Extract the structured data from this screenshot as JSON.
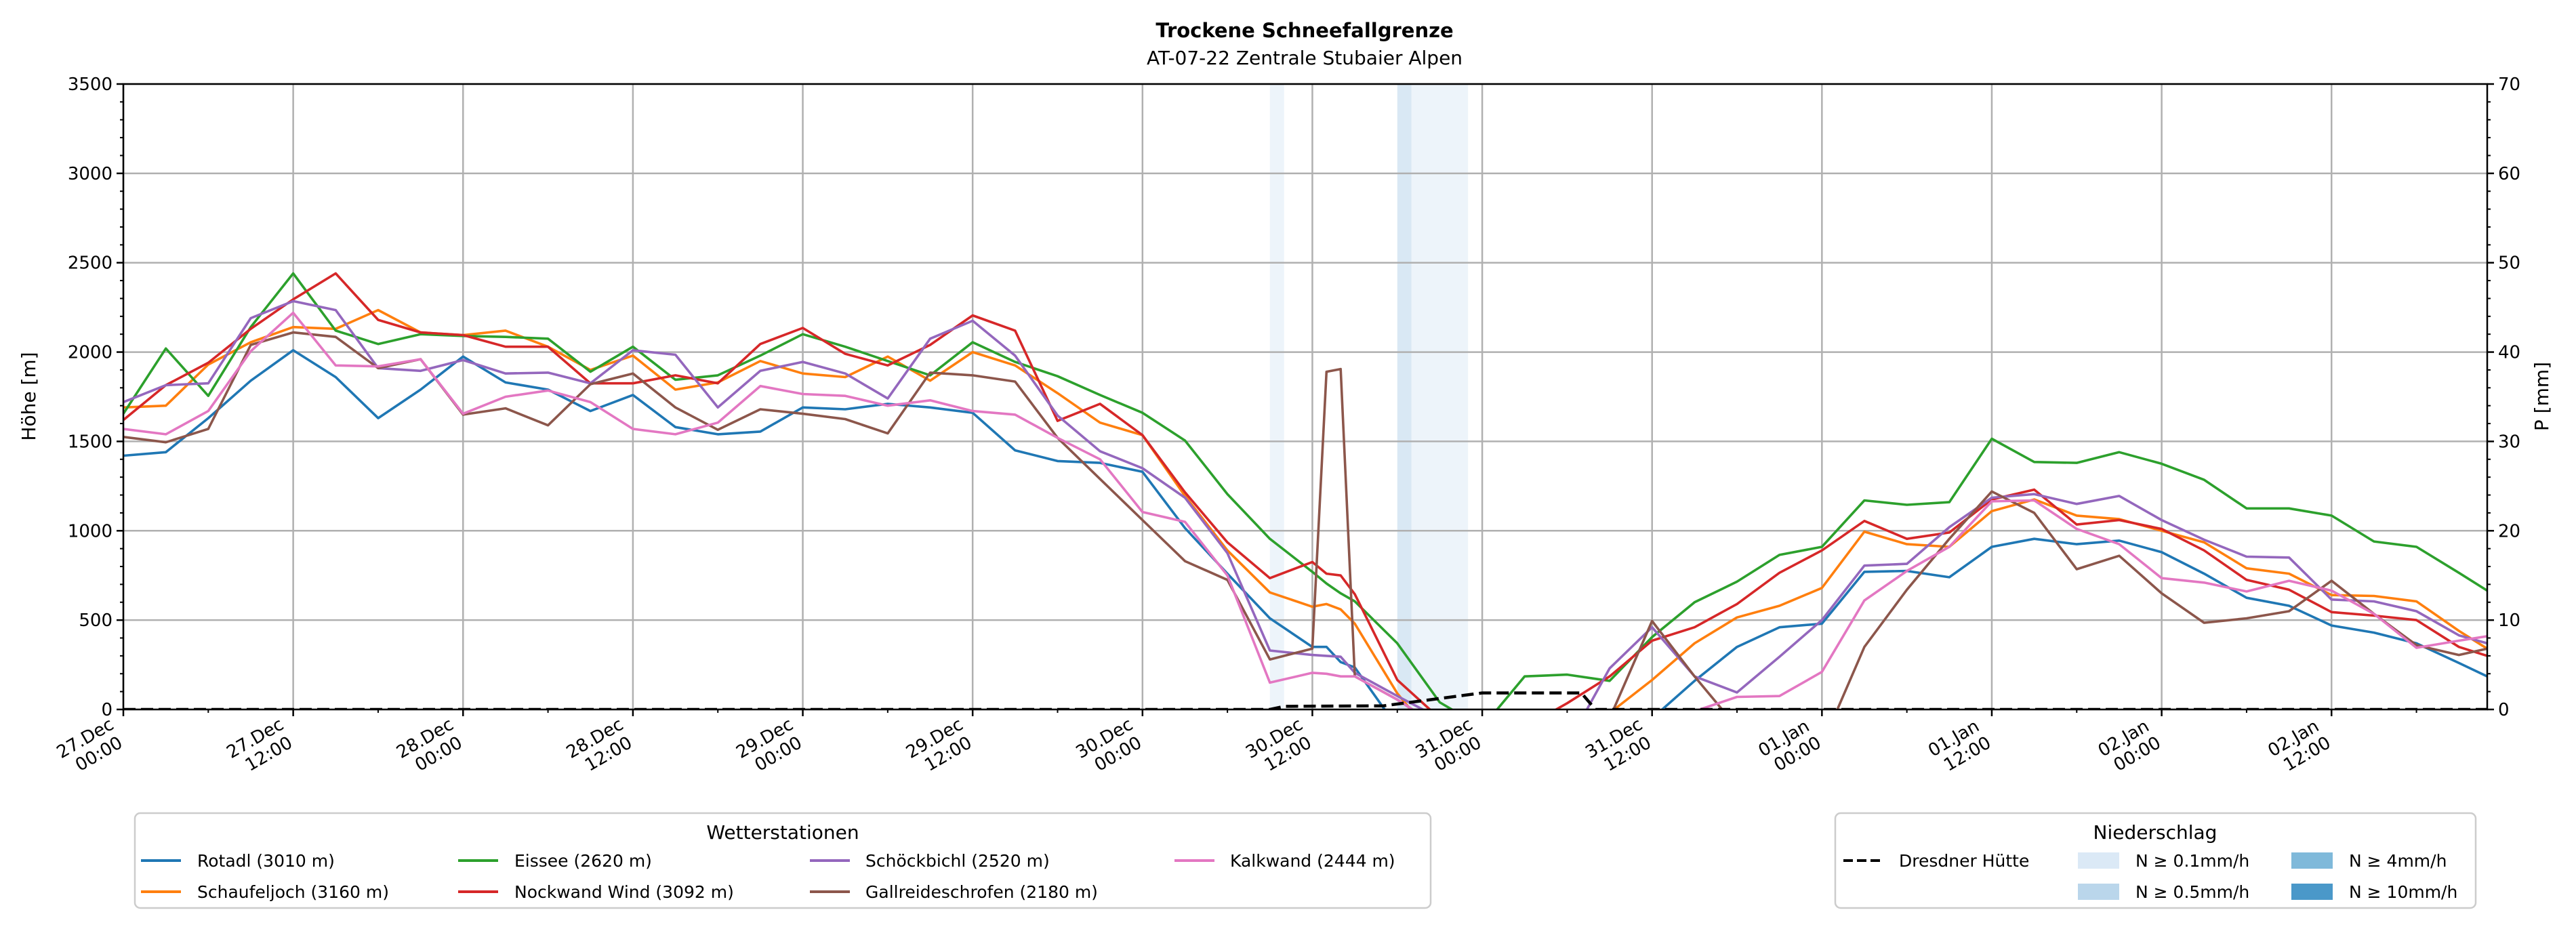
{
  "chart_data": {
    "type": "line",
    "title": "Trockene Schneefallgrenze",
    "subtitle": "AT-07-22 Zentrale Stubaier Alpen",
    "ylabel": "Höhe [m]",
    "y2label": "P [mm]",
    "ylim": [
      0,
      3500
    ],
    "y2lim": [
      0,
      70
    ],
    "yticks": [
      0,
      500,
      1000,
      1500,
      2000,
      2500,
      3000,
      3500
    ],
    "y2ticks": [
      0,
      10,
      20,
      30,
      40,
      50,
      60,
      70
    ],
    "xlim_hours": [
      0,
      167
    ],
    "grid": true,
    "xticks": [
      {
        "hour": 0,
        "date": "27.Dec",
        "time": "00:00"
      },
      {
        "hour": 12,
        "date": "27.Dec",
        "time": "12:00"
      },
      {
        "hour": 24,
        "date": "28.Dec",
        "time": "00:00"
      },
      {
        "hour": 36,
        "date": "28.Dec",
        "time": "12:00"
      },
      {
        "hour": 48,
        "date": "29.Dec",
        "time": "00:00"
      },
      {
        "hour": 60,
        "date": "29.Dec",
        "time": "12:00"
      },
      {
        "hour": 72,
        "date": "30.Dec",
        "time": "00:00"
      },
      {
        "hour": 84,
        "date": "30.Dec",
        "time": "12:00"
      },
      {
        "hour": 96,
        "date": "31.Dec",
        "time": "00:00"
      },
      {
        "hour": 108,
        "date": "31.Dec",
        "time": "12:00"
      },
      {
        "hour": 120,
        "date": "01.Jan",
        "time": "00:00"
      },
      {
        "hour": 132,
        "date": "01.Jan",
        "time": "12:00"
      },
      {
        "hour": 144,
        "date": "02.Jan",
        "time": "00:00"
      },
      {
        "hour": 156,
        "date": "02.Jan",
        "time": "12:00"
      }
    ],
    "x_hours": [
      0,
      3,
      6,
      9,
      12,
      15,
      18,
      21,
      24,
      27,
      30,
      33,
      36,
      39,
      42,
      45,
      48,
      51,
      54,
      57,
      60,
      63,
      66,
      69,
      72,
      75,
      78,
      81,
      84,
      85,
      86,
      87,
      90,
      93,
      96,
      99,
      102,
      105,
      108,
      111,
      114,
      117,
      120,
      123,
      126,
      129,
      132,
      135,
      138,
      141,
      144,
      147,
      150,
      153,
      156,
      159,
      162,
      165,
      167
    ],
    "series": [
      {
        "name": "Rotadl (3010 m)",
        "color": "#1f77b4",
        "values": [
          1420,
          1440,
          1630,
          1840,
          2010,
          1860,
          1630,
          1790,
          1975,
          1830,
          1790,
          1670,
          1760,
          1580,
          1540,
          1555,
          1690,
          1680,
          1710,
          1690,
          1660,
          1450,
          1390,
          1380,
          1330,
          1015,
          760,
          510,
          350,
          350,
          265,
          235,
          -100,
          -200,
          -200,
          -200,
          -200,
          -200,
          -50,
          160,
          350,
          460,
          480,
          770,
          775,
          740,
          910,
          955,
          925,
          945,
          880,
          760,
          625,
          580,
          470,
          430,
          370,
          260,
          185
        ]
      },
      {
        "name": "Schaufeljoch (3160 m)",
        "color": "#ff7f0e",
        "values": [
          1690,
          1700,
          1930,
          2055,
          2140,
          2130,
          2235,
          2110,
          2095,
          2120,
          2030,
          1900,
          1980,
          1790,
          1830,
          1950,
          1880,
          1860,
          1975,
          1840,
          2000,
          1925,
          1770,
          1605,
          1535,
          1195,
          890,
          655,
          575,
          590,
          560,
          480,
          90,
          -200,
          -200,
          -200,
          -200,
          -20,
          165,
          370,
          515,
          580,
          680,
          995,
          925,
          910,
          1110,
          1175,
          1085,
          1065,
          1000,
          935,
          790,
          760,
          640,
          635,
          605,
          440,
          340
        ]
      },
      {
        "name": "Eissee (2620 m)",
        "color": "#2ca02c",
        "values": [
          1655,
          2020,
          1755,
          2140,
          2440,
          2120,
          2045,
          2100,
          2090,
          2085,
          2075,
          1890,
          2030,
          1845,
          1870,
          1980,
          2100,
          2030,
          1950,
          1870,
          2055,
          1945,
          1865,
          1760,
          1660,
          1505,
          1205,
          955,
          770,
          705,
          650,
          605,
          370,
          40,
          -100,
          185,
          195,
          160,
          405,
          600,
          715,
          865,
          910,
          1170,
          1145,
          1160,
          1515,
          1385,
          1380,
          1440,
          1375,
          1285,
          1125,
          1125,
          1085,
          940,
          910,
          765,
          665
        ]
      },
      {
        "name": "Nockwand Wind (3092 m)",
        "color": "#d62728",
        "values": [
          1620,
          1815,
          1940,
          2130,
          2295,
          2440,
          2180,
          2110,
          2095,
          2030,
          2030,
          1825,
          1825,
          1870,
          1825,
          2045,
          2135,
          1990,
          1925,
          2040,
          2205,
          2120,
          1615,
          1710,
          1535,
          1215,
          935,
          735,
          825,
          760,
          750,
          645,
          165,
          -50,
          -200,
          -100,
          35,
          185,
          385,
          460,
          590,
          765,
          890,
          1055,
          955,
          990,
          1175,
          1230,
          1035,
          1060,
          1010,
          890,
          725,
          670,
          545,
          525,
          500,
          350,
          300
        ]
      },
      {
        "name": "Schöckbichl (2520 m)",
        "color": "#9467bd",
        "values": [
          1720,
          1815,
          1825,
          2190,
          2285,
          2235,
          1910,
          1895,
          1955,
          1880,
          1885,
          1825,
          2010,
          1985,
          1690,
          1895,
          1945,
          1880,
          1740,
          2075,
          2175,
          1980,
          1645,
          1445,
          1350,
          1185,
          875,
          330,
          305,
          300,
          295,
          205,
          75,
          -50,
          -200,
          -200,
          -200,
          230,
          460,
          185,
          95,
          295,
          500,
          805,
          815,
          1020,
          1185,
          1205,
          1150,
          1195,
          1060,
          950,
          855,
          850,
          615,
          605,
          550,
          415,
          370
        ]
      },
      {
        "name": "Gallreideschrofen (2180 m)",
        "color": "#8c564b",
        "values": [
          1525,
          1495,
          1570,
          2040,
          2110,
          2085,
          1910,
          1960,
          1650,
          1685,
          1590,
          1820,
          1880,
          1690,
          1565,
          1680,
          1655,
          1625,
          1545,
          1885,
          1870,
          1835,
          1520,
          1290,
          1060,
          830,
          725,
          280,
          340,
          1890,
          1905,
          185,
          55,
          -100,
          -200,
          -200,
          -200,
          -50,
          495,
          185,
          -100,
          -200,
          -200,
          350,
          670,
          955,
          1220,
          1100,
          785,
          860,
          650,
          485,
          510,
          550,
          720,
          535,
          360,
          305,
          340
        ]
      },
      {
        "name": "Kalkwand (2444 m)",
        "color": "#e377c2",
        "values": [
          1570,
          1540,
          1670,
          2005,
          2220,
          1925,
          1920,
          1960,
          1655,
          1750,
          1785,
          1720,
          1570,
          1540,
          1605,
          1810,
          1765,
          1755,
          1700,
          1730,
          1670,
          1650,
          1520,
          1400,
          1105,
          1050,
          750,
          150,
          205,
          200,
          185,
          185,
          55,
          -100,
          -200,
          -200,
          -200,
          -200,
          -200,
          -10,
          70,
          75,
          210,
          610,
          775,
          910,
          1165,
          1170,
          1010,
          925,
          735,
          710,
          660,
          720,
          665,
          535,
          345,
          385,
          410
        ]
      }
    ],
    "precip_series": {
      "name": "Dresdner Hütte",
      "color": "#000000",
      "axis": "right",
      "hours": [
        0,
        81,
        82,
        89,
        96,
        103,
        104,
        167
      ],
      "values": [
        0,
        0,
        0.35,
        0.4,
        1.85,
        1.85,
        0,
        0
      ]
    },
    "precip_bands": [
      {
        "start_hour": 81,
        "end_hour": 82,
        "class": 0
      },
      {
        "start_hour": 90,
        "end_hour": 91,
        "class": 1
      },
      {
        "start_hour": 91,
        "end_hour": 95,
        "class": 0
      }
    ],
    "legend": {
      "stations_title": "Wetterstationen",
      "precip_title": "Niederschlag",
      "placement": "below",
      "precip_classes": [
        {
          "label": "N ≥ 0.1mm/h",
          "color": "#dbe9f6"
        },
        {
          "label": "N ≥ 0.5mm/h",
          "color": "#bad6eb"
        },
        {
          "label": "N ≥ 4mm/h",
          "color": "#7fb9da"
        },
        {
          "label": "N ≥ 10mm/h",
          "color": "#4a98c9"
        }
      ]
    }
  }
}
